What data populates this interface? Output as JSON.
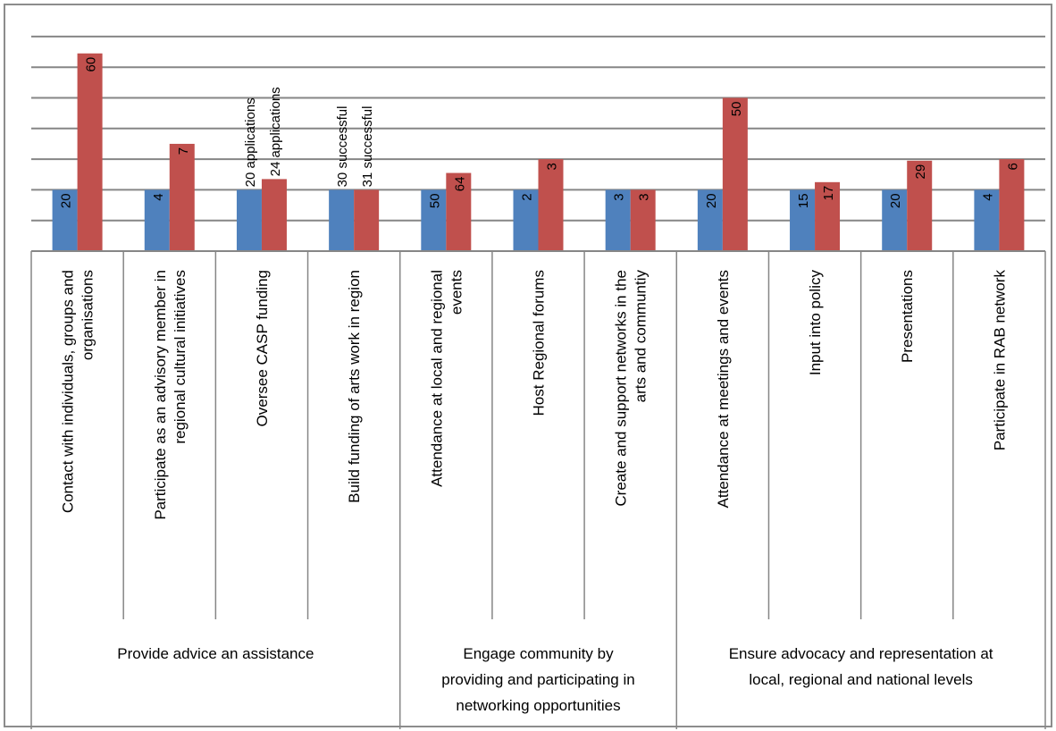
{
  "chart_data": {
    "type": "bar",
    "categories": [
      "Contact with individuals, groups and organisations",
      "Participate as an advisory member in regional cultural initiatives",
      "Oversee CASP funding",
      "Build funding of arts work in region",
      "Attendance at local and regional events",
      "Host Regional forums",
      "Create and support networks in the arts and communtiy",
      "Attendance at meetings and events",
      "Input into policy",
      "Presentations",
      "Participate in RAB network"
    ],
    "category_lines": [
      [
        "Contact with individuals, groups and",
        "organisations"
      ],
      [
        "Participate as an advisory member in",
        "regional cultural initiatives"
      ],
      [
        "Oversee CASP funding"
      ],
      [
        "Build funding of arts work in region"
      ],
      [
        "Attendance at local and regional",
        "events"
      ],
      [
        "Host Regional forums"
      ],
      [
        "Create and support networks in the",
        "arts and communtiy"
      ],
      [
        "Attendance at meetings and events"
      ],
      [
        "Input into policy"
      ],
      [
        "Presentations"
      ],
      [
        "Participate in RAB network"
      ]
    ],
    "groups": [
      {
        "label_lines": [
          "Provide advice an assistance"
        ],
        "count": 4
      },
      {
        "label_lines": [
          "Engage community  by",
          "providing and participating in",
          "networking opportunities"
        ],
        "count": 3
      },
      {
        "label_lines": [
          "Ensure advocacy and representation at",
          "local, regional and national levels"
        ],
        "count": 4
      }
    ],
    "series": [
      {
        "color": "#4f81bd",
        "values": [
          2,
          2,
          2,
          2,
          2,
          2,
          2,
          2,
          2,
          2,
          2
        ],
        "labels": [
          "20",
          "4",
          "20 applications",
          "30 successful",
          "50",
          "2",
          "3",
          "20",
          "15",
          "20",
          "4"
        ]
      },
      {
        "color": "#c0504d",
        "values": [
          6.45,
          3.5,
          2.35,
          2,
          2.55,
          3,
          2,
          5,
          2.25,
          2.95,
          3
        ],
        "labels": [
          "60",
          "7",
          "24 applications",
          "31 successful",
          "64",
          "3",
          "3",
          "50",
          "17",
          "29",
          "6"
        ]
      }
    ],
    "ylim": [
      0,
      7
    ],
    "grid": true,
    "legend": "none"
  }
}
